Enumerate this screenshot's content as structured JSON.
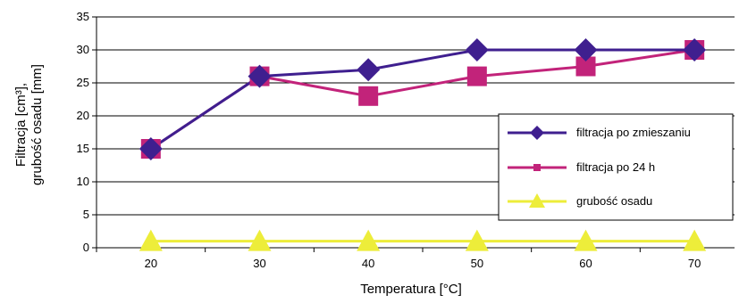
{
  "chart_data": {
    "type": "line",
    "xlabel": "Temperatura [°C]",
    "ylabel_line1": "Filtracja [cm³],",
    "ylabel_line2": "grubość osadu [mm]",
    "x": [
      20,
      30,
      40,
      50,
      60,
      70
    ],
    "ylim": [
      0,
      35
    ],
    "yticks": [
      0,
      5,
      10,
      15,
      20,
      25,
      30,
      35
    ],
    "grid": "horizontal",
    "legend_position": "right",
    "series": [
      {
        "name": "filtracja po zmieszaniu",
        "values": [
          15,
          26,
          27,
          30,
          30,
          30
        ],
        "color": "#3f1f8f",
        "marker": "diamond"
      },
      {
        "name": "filtracja po 24 h",
        "values": [
          15,
          26,
          23,
          26,
          27.5,
          30
        ],
        "color": "#c2237a",
        "marker": "square"
      },
      {
        "name": "grubość osadu",
        "values": [
          1,
          1,
          1,
          1,
          1,
          1
        ],
        "color": "#eded3a",
        "marker": "triangle"
      }
    ]
  }
}
